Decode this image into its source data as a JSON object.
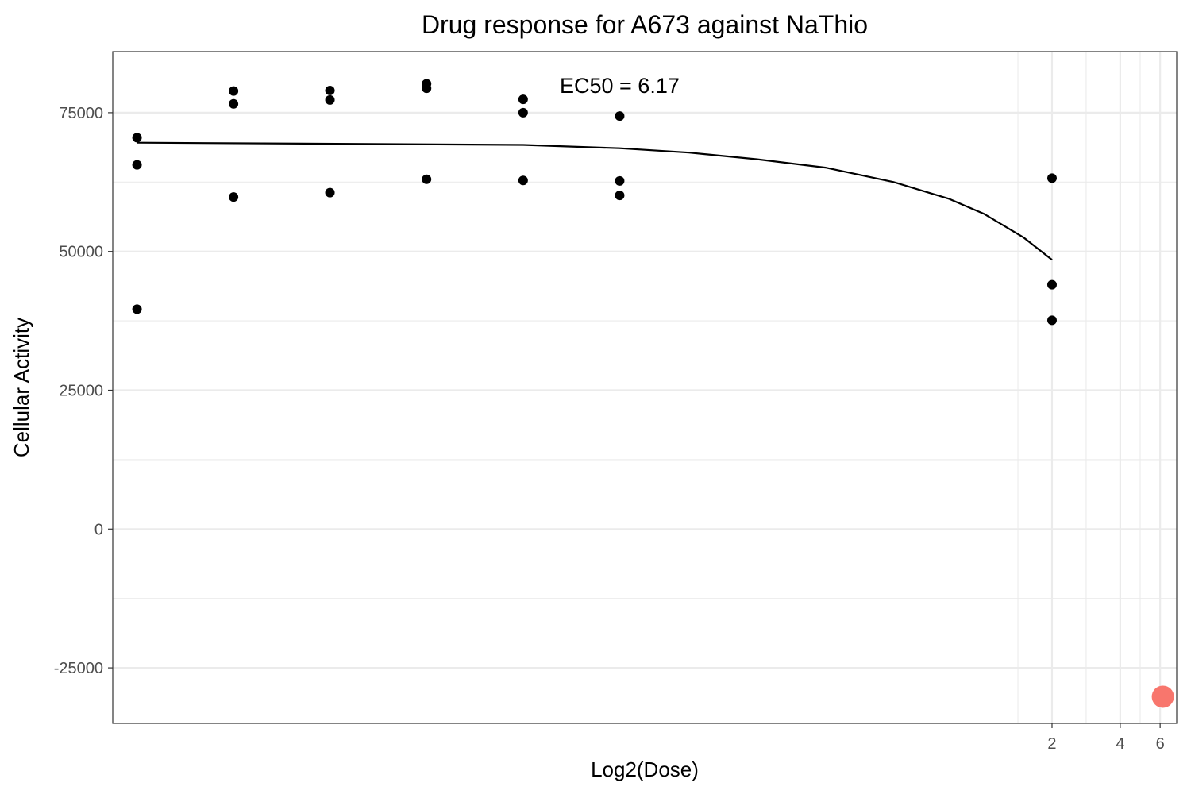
{
  "chart_data": {
    "type": "scatter",
    "title": "Drug response for A673 against NaThio",
    "xlabel": "Log2(Dose)",
    "ylabel": "Cellular Activity",
    "x_scale": "log",
    "xlim": [
      0.000143,
      7.1
    ],
    "ylim": [
      -35000,
      86000
    ],
    "x_ticks": [
      2,
      4,
      6
    ],
    "x_tick_labels": [
      "2",
      "4",
      "6"
    ],
    "y_ticks": [
      -25000,
      0,
      25000,
      50000,
      75000
    ],
    "y_tick_labels": [
      "-25000",
      "0",
      "25000",
      "50000",
      "75000"
    ],
    "grid": true,
    "legend": "none",
    "series": [
      {
        "kind": "points",
        "color": "#000000",
        "points": [
          [
            0.000183,
            70500
          ],
          [
            0.000183,
            65600
          ],
          [
            0.000183,
            39600
          ],
          [
            0.000488,
            78900
          ],
          [
            0.000488,
            76600
          ],
          [
            0.000488,
            59800
          ],
          [
            0.0013,
            79000
          ],
          [
            0.0013,
            77300
          ],
          [
            0.0013,
            60600
          ],
          [
            0.00347,
            80200
          ],
          [
            0.00347,
            79400
          ],
          [
            0.00347,
            63000
          ],
          [
            0.00926,
            77400
          ],
          [
            0.00926,
            75000
          ],
          [
            0.00926,
            62800
          ],
          [
            0.0247,
            74400
          ],
          [
            0.0247,
            62700
          ],
          [
            0.0247,
            60100
          ],
          [
            2,
            63200
          ],
          [
            2,
            44000
          ],
          [
            2,
            37600
          ]
        ]
      },
      {
        "kind": "fit-curve",
        "color": "#000000",
        "x": [
          0.000183,
          0.00926,
          0.0247,
          0.05,
          0.1,
          0.2,
          0.4,
          0.7,
          1.0,
          1.5,
          2.0
        ],
        "y": [
          69600,
          69200,
          68600,
          67800,
          66600,
          65100,
          62500,
          59500,
          56800,
          52500,
          48500
        ]
      },
      {
        "kind": "ec50-marker",
        "color": "#F8766D",
        "points": [
          [
            6.17,
            -30200
          ]
        ]
      }
    ],
    "annotations": [
      {
        "text": "EC50 = 6.17",
        "x": 0.0247,
        "y": 80000
      }
    ]
  }
}
